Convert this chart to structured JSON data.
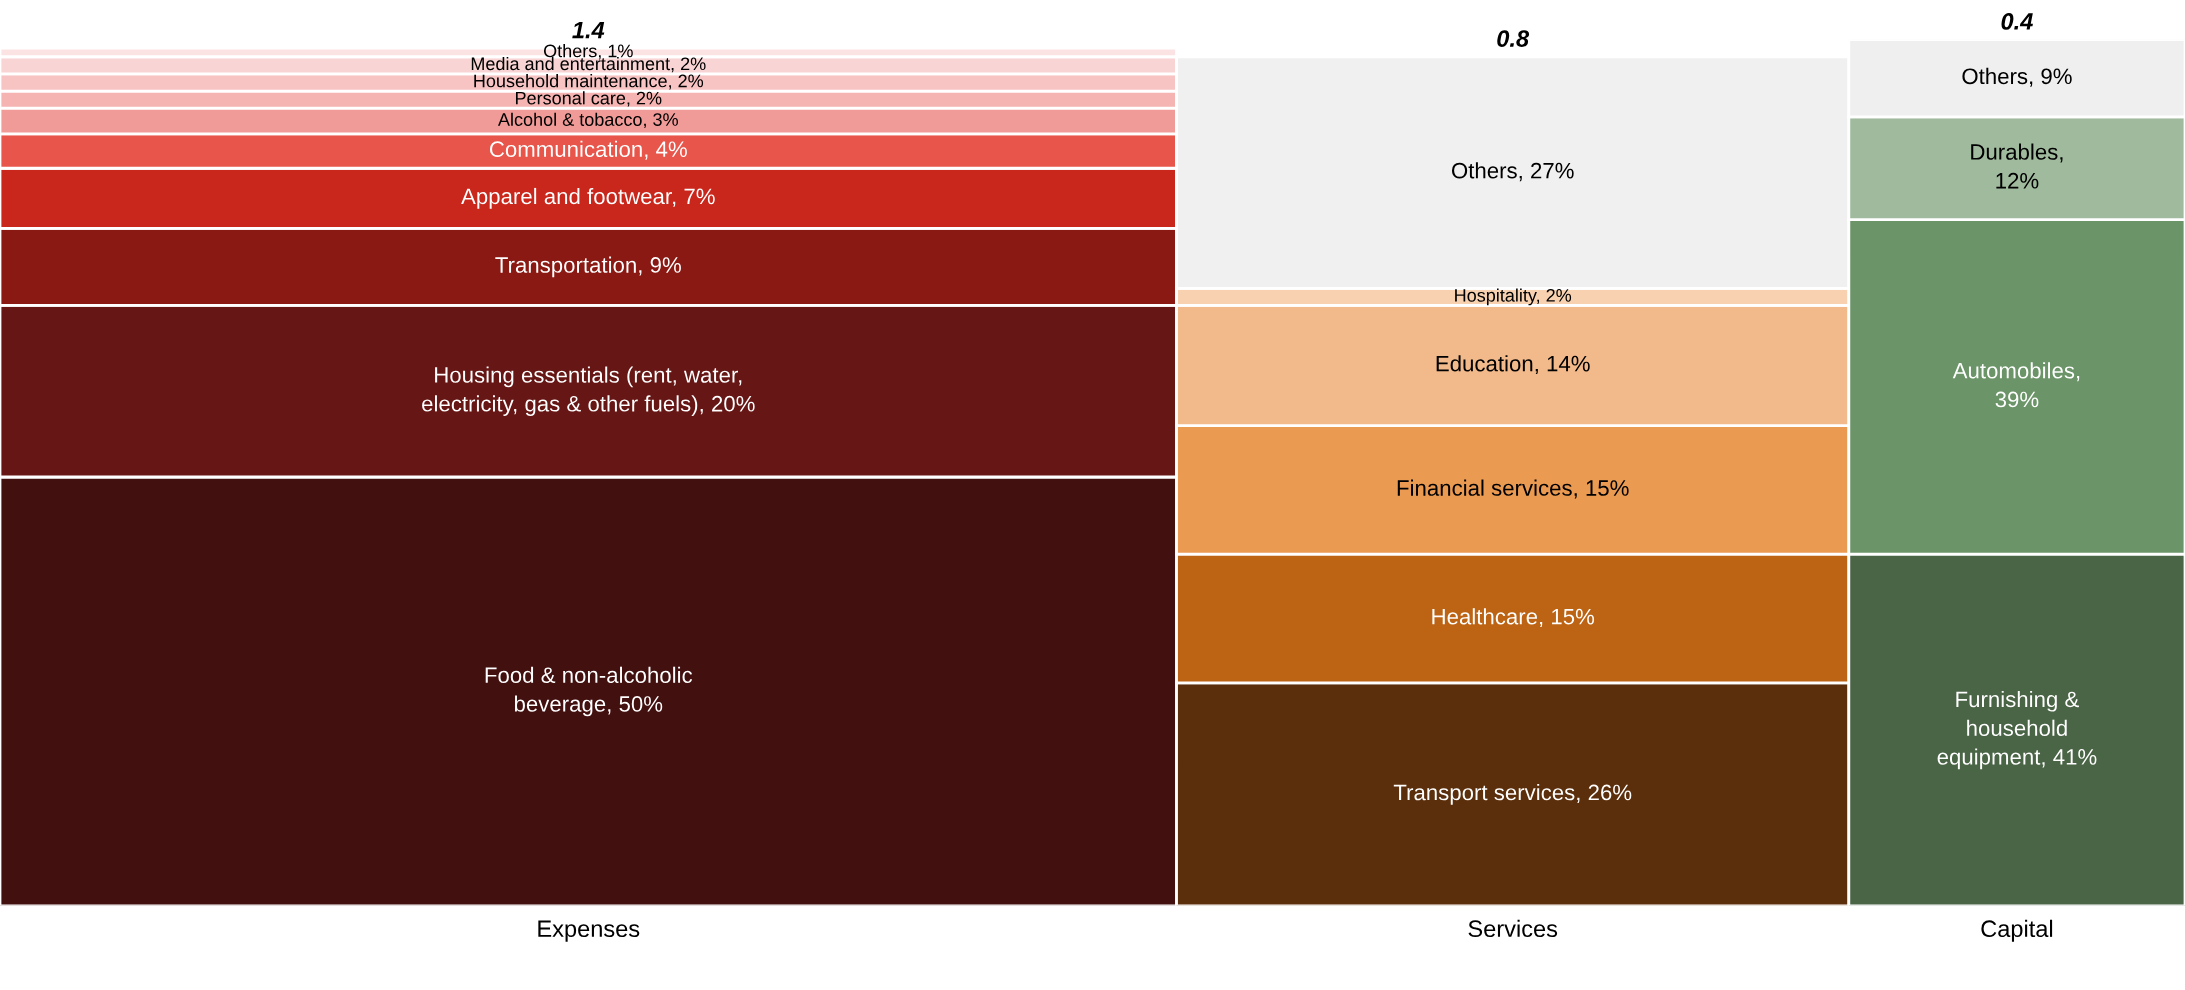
{
  "chart_data": {
    "type": "bar",
    "stacked": true,
    "categories": [
      "Expenses",
      "Services",
      "Capital"
    ],
    "annotations": [
      {
        "text": "1.4",
        "x": "Expenses",
        "y": 100
      },
      {
        "text": "0.8",
        "x": "Services",
        "y": 99
      },
      {
        "text": "0.4",
        "x": "Capital",
        "y": 101
      }
    ],
    "ylim": [
      0,
      101
    ],
    "tick_labels": "x",
    "series": [
      {
        "color": "#431010",
        "values": [
          50,
          null,
          null
        ],
        "value_labels": [
          "Food & non-alcoholic\nbeverage, 50%",
          null,
          null
        ]
      },
      {
        "color": "#661614",
        "values": [
          20,
          null,
          null
        ],
        "value_labels": [
          "Housing essentials (rent, water,\nelectricity, gas & other fuels), 20%",
          null,
          null
        ]
      },
      {
        "color": "#8a1914",
        "values": [
          9,
          null,
          null
        ],
        "value_labels": [
          "Transportation, 9%",
          null,
          null
        ]
      },
      {
        "color": "#c9261c",
        "values": [
          7,
          null,
          null
        ],
        "value_labels": [
          "Apparel and footwear, 7%",
          null,
          null
        ]
      },
      {
        "color": "#e8554a",
        "values": [
          4,
          null,
          null
        ],
        "value_labels": [
          "Communication, 4%",
          null,
          null
        ]
      },
      {
        "color": "#f19b98",
        "values": [
          3,
          null,
          null
        ],
        "value_labels": [
          "Alcohol & tobacco, 3%",
          null,
          null
        ]
      },
      {
        "color": "#f5b3b1",
        "values": [
          2,
          null,
          null
        ],
        "value_labels": [
          "Personal care, 2%",
          null,
          null
        ]
      },
      {
        "color": "#f7c4c3",
        "values": [
          2,
          null,
          null
        ],
        "value_labels": [
          "Household maintenance, 2%",
          null,
          null
        ]
      },
      {
        "color": "#f9d4d4",
        "values": [
          2,
          null,
          null
        ],
        "value_labels": [
          "Media and entertainment, 2%",
          null,
          null
        ]
      },
      {
        "color": "#fbe3e3",
        "values": [
          1,
          null,
          null
        ],
        "value_labels": [
          "Others, 1%",
          null,
          null
        ]
      },
      {
        "color": "#5c2f0c",
        "values": [
          null,
          26,
          null
        ],
        "value_labels": [
          null,
          "Transport services, 26%",
          null
        ]
      },
      {
        "color": "#bd6314",
        "values": [
          null,
          15,
          null
        ],
        "value_labels": [
          null,
          "Healthcare, 15%",
          null
        ]
      },
      {
        "color": "#eb9a52",
        "values": [
          null,
          15,
          null
        ],
        "value_labels": [
          null,
          "Financial services, 15%",
          null
        ]
      },
      {
        "color": "#f2b98a",
        "values": [
          null,
          14,
          null
        ],
        "value_labels": [
          null,
          "Education, 14%",
          null
        ]
      },
      {
        "color": "#f8d2b0",
        "values": [
          null,
          2,
          null
        ],
        "value_labels": [
          null,
          "Hospitality, 2%",
          null
        ]
      },
      {
        "color": "#f0f0f0",
        "values": [
          null,
          27,
          null
        ],
        "value_labels": [
          null,
          "Others, 27%",
          null
        ]
      },
      {
        "color": "#4a6446",
        "values": [
          null,
          null,
          41
        ],
        "value_labels": [
          null,
          null,
          "Furnishing &\nhousehold\nequipment, 41%"
        ]
      },
      {
        "color": "#6b9468",
        "values": [
          null,
          null,
          39
        ],
        "value_labels": [
          null,
          null,
          "Automobiles,\n39%"
        ]
      },
      {
        "color": "#9fba9c",
        "values": [
          null,
          null,
          12
        ],
        "value_labels": [
          null,
          null,
          "Durables,\n12%"
        ]
      },
      {
        "color": "#efefef",
        "values": [
          null,
          null,
          9
        ],
        "value_labels": [
          null,
          null,
          "Others, 9%"
        ]
      }
    ]
  }
}
